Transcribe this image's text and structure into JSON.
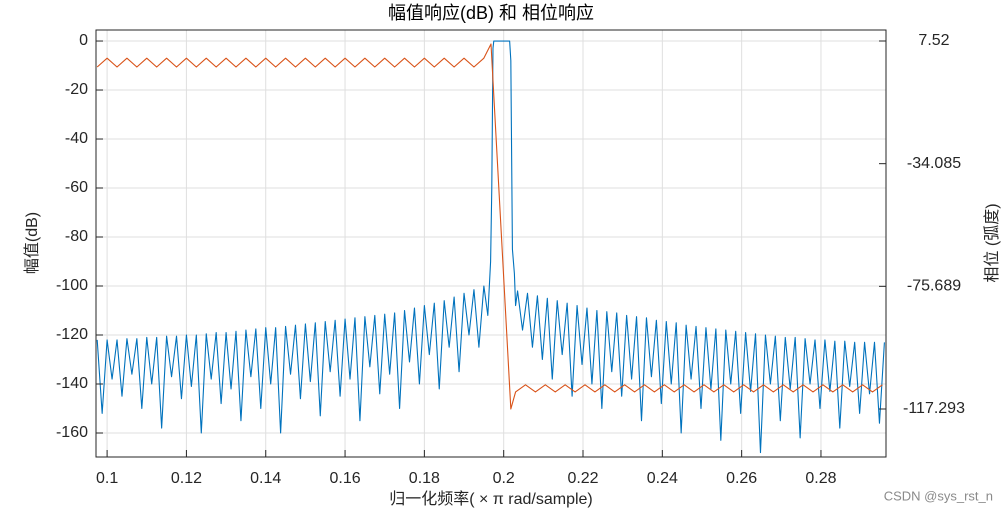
{
  "chart_data": {
    "type": "line",
    "title": "幅值响应(dB) 和 相位响应",
    "xlabel": "归一化频率( × π  rad/sample)",
    "ylabel": "幅值(dB)",
    "y2label": "相位 (弧度)",
    "watermark": "CSDN @sys_rst_n",
    "xlim": [
      0.0972,
      0.2964
    ],
    "ylim": [
      -169.8,
      4.5
    ],
    "y2lim": [
      -133.57,
      11.25
    ],
    "xticks": [
      0.1,
      0.12,
      0.14,
      0.16,
      0.18,
      0.2,
      0.22,
      0.24,
      0.26,
      0.28
    ],
    "yticks": [
      -160,
      -140,
      -120,
      -100,
      -80,
      -60,
      -40,
      -20,
      0
    ],
    "y2ticks": [
      -117.293,
      -75.689,
      -34.085,
      7.52
    ],
    "grid": true,
    "series": [
      {
        "name": "幅值",
        "color": "#0072BD",
        "x": [
          0.0975,
          0.09875,
          0.1,
          0.10125,
          0.1025,
          0.10375,
          0.105,
          0.10625,
          0.1075,
          0.10875,
          0.11,
          0.11125,
          0.1125,
          0.11375,
          0.115,
          0.11625,
          0.1175,
          0.11875,
          0.12,
          0.12125,
          0.1225,
          0.12375,
          0.125,
          0.12625,
          0.1275,
          0.12875,
          0.13,
          0.13125,
          0.1325,
          0.13375,
          0.135,
          0.13625,
          0.1375,
          0.13875,
          0.14,
          0.14125,
          0.1425,
          0.14375,
          0.145,
          0.14625,
          0.1475,
          0.14875,
          0.15,
          0.15125,
          0.1525,
          0.15375,
          0.155,
          0.15625,
          0.1575,
          0.15875,
          0.16,
          0.16125,
          0.1625,
          0.16375,
          0.165,
          0.16625,
          0.1675,
          0.16875,
          0.17,
          0.17125,
          0.1725,
          0.17375,
          0.175,
          0.17625,
          0.1775,
          0.17875,
          0.18,
          0.18125,
          0.1825,
          0.18375,
          0.185,
          0.18625,
          0.1875,
          0.18875,
          0.19,
          0.19125,
          0.1925,
          0.19375,
          0.195,
          0.196,
          0.1967,
          0.197,
          0.1973,
          0.1975,
          0.2015,
          0.2018,
          0.2022,
          0.2027,
          0.203,
          0.2035,
          0.20475,
          0.206,
          0.20725,
          0.2085,
          0.20975,
          0.211,
          0.21225,
          0.2135,
          0.21475,
          0.216,
          0.21725,
          0.2185,
          0.21975,
          0.221,
          0.22225,
          0.2235,
          0.22475,
          0.226,
          0.22725,
          0.2285,
          0.22975,
          0.231,
          0.23225,
          0.2335,
          0.23475,
          0.236,
          0.23725,
          0.2385,
          0.23975,
          0.241,
          0.24225,
          0.2435,
          0.24475,
          0.246,
          0.24725,
          0.2485,
          0.24975,
          0.251,
          0.25225,
          0.2535,
          0.25475,
          0.256,
          0.25725,
          0.2585,
          0.25975,
          0.261,
          0.26225,
          0.2635,
          0.26475,
          0.266,
          0.26725,
          0.2685,
          0.26975,
          0.271,
          0.27225,
          0.2735,
          0.27475,
          0.276,
          0.27725,
          0.2785,
          0.27975,
          0.281,
          0.28225,
          0.2835,
          0.28475,
          0.286,
          0.28725,
          0.2885,
          0.28975,
          0.291,
          0.29225,
          0.2935,
          0.29475,
          0.296
        ],
        "values": [
          -122,
          -152,
          -122,
          -138,
          -122,
          -145,
          -121.5,
          -136,
          -121.5,
          -150,
          -121,
          -140,
          -121,
          -158,
          -120.5,
          -137,
          -120.5,
          -146,
          -120,
          -141,
          -120,
          -160,
          -119.5,
          -138,
          -119,
          -148,
          -119,
          -142,
          -118.5,
          -155,
          -118,
          -137,
          -117.5,
          -150,
          -117,
          -140,
          -117,
          -160,
          -116.5,
          -136,
          -116,
          -146,
          -115.5,
          -139,
          -115,
          -153,
          -114.5,
          -135,
          -114,
          -145,
          -113.5,
          -138,
          -113,
          -155,
          -112.5,
          -133,
          -112,
          -144,
          -111.5,
          -136,
          -111,
          -150,
          -110,
          -131,
          -109,
          -140,
          -108,
          -128,
          -107,
          -142,
          -106,
          -125,
          -104.5,
          -135,
          -103,
          -120,
          -101.5,
          -125,
          -100,
          -112,
          -90,
          -60,
          -3,
          0,
          0,
          -8,
          -85,
          -95,
          -108,
          -102,
          -118,
          -103,
          -125,
          -104,
          -130,
          -105,
          -138,
          -106,
          -128,
          -107,
          -145,
          -108,
          -132,
          -109,
          -140,
          -110,
          -150,
          -110.5,
          -135,
          -111,
          -145,
          -112,
          -138,
          -112.5,
          -155,
          -113,
          -137,
          -114,
          -148,
          -114.5,
          -140,
          -115,
          -160,
          -116,
          -138,
          -116.5,
          -150,
          -117,
          -142,
          -117.5,
          -163,
          -118,
          -140,
          -118.5,
          -152,
          -119,
          -143,
          -119.5,
          -168,
          -120,
          -140,
          -120.5,
          -155,
          -121,
          -142,
          -121,
          -162,
          -121.5,
          -140,
          -122,
          -150,
          -122,
          -143,
          -122.5,
          -158,
          -122.5,
          -141,
          -123,
          -152,
          -123,
          -144,
          -123,
          -156,
          -123
        ]
      },
      {
        "name": "相位",
        "color": "#D95319",
        "axis": "y2",
        "x": [
          0.0975,
          0.1,
          0.1025,
          0.105,
          0.1075,
          0.11,
          0.1125,
          0.115,
          0.1175,
          0.12,
          0.1225,
          0.125,
          0.1275,
          0.13,
          0.1325,
          0.135,
          0.1375,
          0.14,
          0.1425,
          0.145,
          0.1475,
          0.15,
          0.1525,
          0.155,
          0.1575,
          0.16,
          0.1625,
          0.165,
          0.1675,
          0.17,
          0.1725,
          0.175,
          0.1775,
          0.18,
          0.1825,
          0.185,
          0.1875,
          0.19,
          0.1925,
          0.195,
          0.1968,
          0.2018,
          0.203,
          0.2055,
          0.208,
          0.2105,
          0.213,
          0.2155,
          0.218,
          0.2205,
          0.223,
          0.2255,
          0.228,
          0.2305,
          0.233,
          0.2355,
          0.238,
          0.2405,
          0.243,
          0.2455,
          0.248,
          0.2505,
          0.253,
          0.2555,
          0.258,
          0.2605,
          0.263,
          0.2655,
          0.268,
          0.2705,
          0.273,
          0.2755,
          0.278,
          0.2805,
          0.283,
          0.2855,
          0.288,
          0.2905,
          0.293,
          0.2955
        ],
        "values": [
          -1.3,
          1.7,
          -1.3,
          1.7,
          -1.3,
          1.7,
          -1.3,
          1.7,
          -1.3,
          1.7,
          -1.3,
          1.7,
          -1.3,
          1.7,
          -1.3,
          1.7,
          -1.3,
          1.7,
          -1.3,
          1.7,
          -1.3,
          1.7,
          -1.3,
          1.7,
          -1.3,
          1.7,
          -1.3,
          1.7,
          -1.3,
          1.7,
          -1.3,
          1.7,
          -1.3,
          1.7,
          -1.3,
          1.7,
          -1.3,
          1.7,
          -1.3,
          1.7,
          6.5,
          -117.3,
          -111.5,
          -109.1,
          -111.5,
          -109.1,
          -111.5,
          -109.1,
          -111.5,
          -109.1,
          -111.5,
          -109.1,
          -111.5,
          -109.1,
          -111.5,
          -109.1,
          -111.5,
          -109.1,
          -111.5,
          -109.1,
          -111.5,
          -109.1,
          -111.5,
          -109.1,
          -111.5,
          -109.1,
          -111.5,
          -109.1,
          -111.5,
          -109.1,
          -111.5,
          -109.1,
          -111.5,
          -109.1,
          -111.5,
          -109.1,
          -111.5,
          -109.1,
          -111.5,
          -109.1
        ]
      }
    ]
  }
}
